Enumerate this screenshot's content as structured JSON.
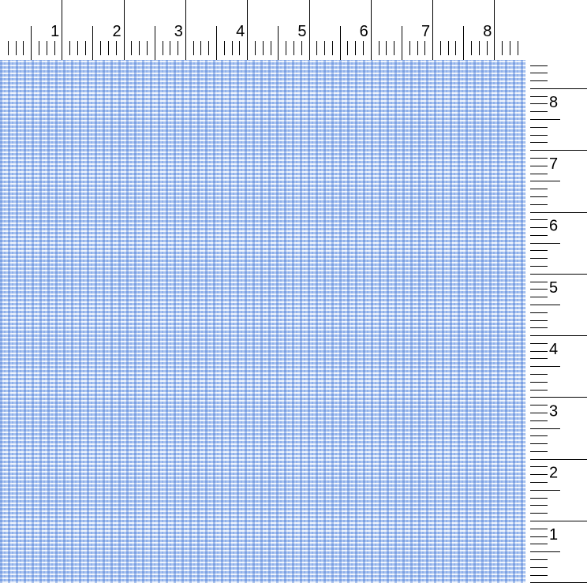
{
  "top_ruler": {
    "labels": [
      "1",
      "2",
      "3",
      "4",
      "5",
      "6",
      "7",
      "8"
    ]
  },
  "side_ruler": {
    "labels": [
      "8",
      "7",
      "6",
      "5",
      "4",
      "3",
      "2",
      "1"
    ]
  },
  "fabric": {
    "colors": {
      "base": "#a9c3ef",
      "stripe": "#7ea2e4",
      "dash": "#ffffff"
    }
  }
}
